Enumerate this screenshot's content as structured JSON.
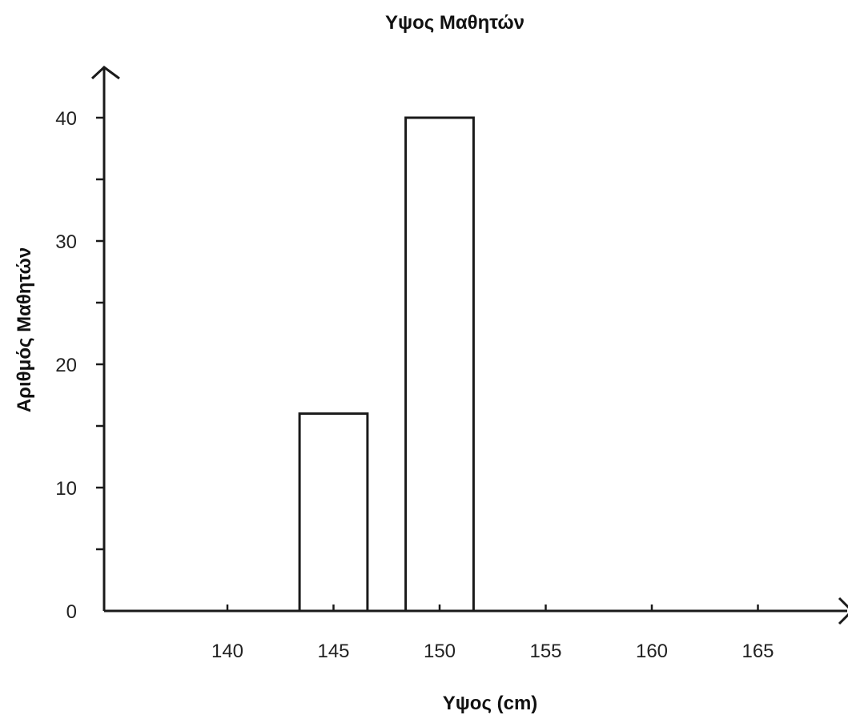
{
  "chart_data": {
    "type": "bar",
    "title": "Υψος Μαθητών",
    "xlabel": "Υψος (cm)",
    "ylabel": "Αριθμός Μαθητών",
    "x_ticks": [
      140,
      145,
      150,
      155,
      160,
      165
    ],
    "y_ticks": [
      0,
      10,
      20,
      30,
      40
    ],
    "y_minor_ticks": [
      5,
      15,
      25,
      35
    ],
    "xlim": [
      135,
      169
    ],
    "ylim": [
      0,
      44
    ],
    "categories": [
      145,
      150
    ],
    "values": [
      16,
      40
    ],
    "grid": false,
    "legend": "none"
  }
}
